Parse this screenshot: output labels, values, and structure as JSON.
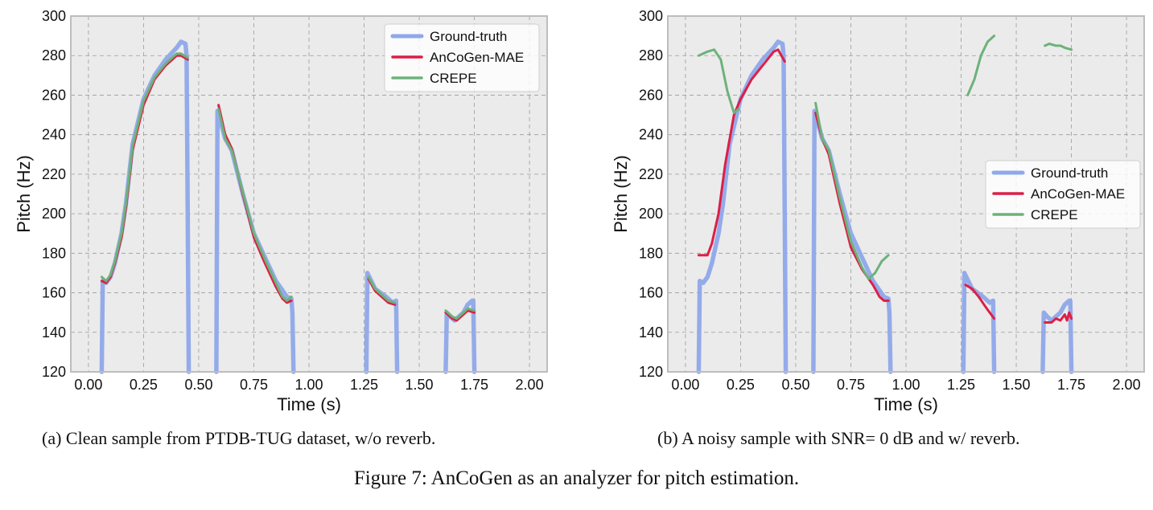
{
  "figure_caption": "Figure 7: AnCoGen as an analyzer for pitch estimation.",
  "panels": [
    {
      "caption": "(a) Clean sample from PTDB-TUG dataset, w/o reverb."
    },
    {
      "caption": "(b) A noisy sample with SNR= 0 dB and w/ reverb."
    }
  ],
  "colors": {
    "ground_truth": "#8fa8ea",
    "ancogen": "#dc1f46",
    "crepe": "#6db27a",
    "plot_bg": "#ebebeb",
    "grid": "#9a9a9a",
    "frame": "#bdbdbd"
  },
  "chart_data": [
    {
      "type": "line",
      "xlabel": "Time (s)",
      "ylabel": "Pitch (Hz)",
      "xlim": [
        -0.08,
        2.08
      ],
      "ylim": [
        120,
        300
      ],
      "xticks": [
        "0.00",
        "0.25",
        "0.50",
        "0.75",
        "1.00",
        "1.25",
        "1.50",
        "1.75",
        "2.00"
      ],
      "yticks": [
        "120",
        "140",
        "160",
        "180",
        "200",
        "220",
        "240",
        "260",
        "280",
        "300"
      ],
      "grid": true,
      "legend_position": "top-right",
      "series": [
        {
          "name": "Ground-truth",
          "color": "#8fa8ea",
          "width": 5.5,
          "segments": [
            [
              [
                0.06,
                120
              ],
              [
                0.065,
                166
              ],
              [
                0.08,
                165
              ],
              [
                0.1,
                168
              ],
              [
                0.12,
                175
              ],
              [
                0.15,
                190
              ],
              [
                0.17,
                205
              ],
              [
                0.2,
                235
              ],
              [
                0.25,
                258
              ],
              [
                0.3,
                270
              ],
              [
                0.35,
                278
              ],
              [
                0.4,
                284
              ],
              [
                0.42,
                287
              ],
              [
                0.44,
                286
              ],
              [
                0.445,
                280
              ],
              [
                0.45,
                200
              ],
              [
                0.455,
                120
              ]
            ],
            [
              [
                0.58,
                120
              ],
              [
                0.585,
                252
              ],
              [
                0.62,
                238
              ],
              [
                0.65,
                232
              ],
              [
                0.7,
                210
              ],
              [
                0.75,
                190
              ],
              [
                0.8,
                178
              ],
              [
                0.85,
                166
              ],
              [
                0.9,
                158
              ],
              [
                0.92,
                157
              ],
              [
                0.925,
                150
              ],
              [
                0.93,
                120
              ]
            ],
            [
              [
                1.26,
                120
              ],
              [
                1.265,
                170
              ],
              [
                1.3,
                162
              ],
              [
                1.35,
                158
              ],
              [
                1.38,
                155
              ],
              [
                1.395,
                156
              ],
              [
                1.4,
                120
              ]
            ],
            [
              [
                1.62,
                120
              ],
              [
                1.625,
                150
              ],
              [
                1.64,
                148
              ],
              [
                1.66,
                146
              ],
              [
                1.7,
                150
              ],
              [
                1.72,
                154
              ],
              [
                1.74,
                156
              ],
              [
                1.745,
                156
              ],
              [
                1.75,
                120
              ]
            ]
          ]
        },
        {
          "name": "AnCoGen-MAE",
          "color": "#dc1f46",
          "width": 3,
          "segments": [
            [
              [
                0.06,
                166
              ],
              [
                0.08,
                165
              ],
              [
                0.1,
                168
              ],
              [
                0.12,
                175
              ],
              [
                0.15,
                188
              ],
              [
                0.17,
                203
              ],
              [
                0.2,
                232
              ],
              [
                0.25,
                255
              ],
              [
                0.3,
                268
              ],
              [
                0.35,
                275
              ],
              [
                0.4,
                280
              ],
              [
                0.42,
                280
              ],
              [
                0.45,
                278
              ]
            ],
            [
              [
                0.59,
                255
              ],
              [
                0.62,
                240
              ],
              [
                0.65,
                233
              ],
              [
                0.7,
                210
              ],
              [
                0.75,
                188
              ],
              [
                0.8,
                175
              ],
              [
                0.85,
                163
              ],
              [
                0.88,
                157
              ],
              [
                0.9,
                155
              ],
              [
                0.92,
                156
              ]
            ],
            [
              [
                1.27,
                167
              ],
              [
                1.3,
                161
              ],
              [
                1.33,
                158
              ],
              [
                1.36,
                155
              ],
              [
                1.39,
                154
              ]
            ],
            [
              [
                1.62,
                150
              ],
              [
                1.65,
                147
              ],
              [
                1.67,
                146
              ],
              [
                1.7,
                149
              ],
              [
                1.72,
                151
              ],
              [
                1.75,
                150
              ]
            ]
          ]
        },
        {
          "name": "CREPE",
          "color": "#6db27a",
          "width": 3,
          "segments": [
            [
              [
                0.06,
                168
              ],
              [
                0.08,
                166
              ],
              [
                0.1,
                169
              ],
              [
                0.12,
                176
              ],
              [
                0.15,
                190
              ],
              [
                0.17,
                205
              ],
              [
                0.2,
                234
              ],
              [
                0.25,
                257
              ],
              [
                0.3,
                269
              ],
              [
                0.35,
                276
              ],
              [
                0.4,
                281
              ],
              [
                0.42,
                281
              ],
              [
                0.45,
                279
              ]
            ],
            [
              [
                0.59,
                253
              ],
              [
                0.62,
                238
              ],
              [
                0.65,
                232
              ],
              [
                0.7,
                211
              ],
              [
                0.75,
                190
              ],
              [
                0.8,
                177
              ],
              [
                0.85,
                165
              ],
              [
                0.88,
                158
              ],
              [
                0.9,
                156
              ],
              [
                0.92,
                158
              ]
            ],
            [
              [
                1.27,
                168
              ],
              [
                1.3,
                162
              ],
              [
                1.33,
                159
              ],
              [
                1.36,
                156
              ],
              [
                1.39,
                155
              ]
            ],
            [
              [
                1.62,
                151
              ],
              [
                1.65,
                148
              ],
              [
                1.67,
                147
              ],
              [
                1.7,
                150
              ],
              [
                1.72,
                152
              ],
              [
                1.75,
                151
              ]
            ]
          ]
        }
      ]
    },
    {
      "type": "line",
      "xlabel": "Time (s)",
      "ylabel": "Pitch (Hz)",
      "xlim": [
        -0.08,
        2.08
      ],
      "ylim": [
        120,
        300
      ],
      "xticks": [
        "0.00",
        "0.25",
        "0.50",
        "0.75",
        "1.00",
        "1.25",
        "1.50",
        "1.75",
        "2.00"
      ],
      "yticks": [
        "120",
        "140",
        "160",
        "180",
        "200",
        "220",
        "240",
        "260",
        "280",
        "300"
      ],
      "grid": true,
      "legend_position": "center-right",
      "series": [
        {
          "name": "Ground-truth",
          "color": "#8fa8ea",
          "width": 5.5,
          "segments": [
            [
              [
                0.06,
                120
              ],
              [
                0.065,
                166
              ],
              [
                0.08,
                165
              ],
              [
                0.1,
                168
              ],
              [
                0.12,
                175
              ],
              [
                0.15,
                190
              ],
              [
                0.17,
                205
              ],
              [
                0.2,
                235
              ],
              [
                0.25,
                258
              ],
              [
                0.3,
                270
              ],
              [
                0.35,
                278
              ],
              [
                0.4,
                284
              ],
              [
                0.42,
                287
              ],
              [
                0.44,
                286
              ],
              [
                0.445,
                280
              ],
              [
                0.45,
                200
              ],
              [
                0.455,
                120
              ]
            ],
            [
              [
                0.58,
                120
              ],
              [
                0.585,
                252
              ],
              [
                0.62,
                238
              ],
              [
                0.65,
                232
              ],
              [
                0.7,
                210
              ],
              [
                0.75,
                190
              ],
              [
                0.8,
                178
              ],
              [
                0.85,
                166
              ],
              [
                0.9,
                158
              ],
              [
                0.92,
                157
              ],
              [
                0.925,
                150
              ],
              [
                0.93,
                120
              ]
            ],
            [
              [
                1.26,
                120
              ],
              [
                1.265,
                170
              ],
              [
                1.3,
                162
              ],
              [
                1.35,
                158
              ],
              [
                1.38,
                155
              ],
              [
                1.395,
                156
              ],
              [
                1.4,
                120
              ]
            ],
            [
              [
                1.62,
                120
              ],
              [
                1.625,
                150
              ],
              [
                1.64,
                148
              ],
              [
                1.66,
                146
              ],
              [
                1.7,
                150
              ],
              [
                1.72,
                154
              ],
              [
                1.74,
                156
              ],
              [
                1.745,
                156
              ],
              [
                1.75,
                120
              ]
            ]
          ]
        },
        {
          "name": "AnCoGen-MAE",
          "color": "#dc1f46",
          "width": 3,
          "segments": [
            [
              [
                0.06,
                179
              ],
              [
                0.1,
                179
              ],
              [
                0.12,
                185
              ],
              [
                0.15,
                200
              ],
              [
                0.18,
                225
              ],
              [
                0.22,
                250
              ],
              [
                0.25,
                258
              ],
              [
                0.3,
                268
              ],
              [
                0.35,
                275
              ],
              [
                0.4,
                282
              ],
              [
                0.42,
                283
              ],
              [
                0.45,
                277
              ]
            ],
            [
              [
                0.59,
                251
              ],
              [
                0.62,
                238
              ],
              [
                0.65,
                230
              ],
              [
                0.7,
                205
              ],
              [
                0.75,
                183
              ],
              [
                0.8,
                172
              ],
              [
                0.85,
                164
              ],
              [
                0.88,
                158
              ],
              [
                0.9,
                156
              ],
              [
                0.92,
                156
              ]
            ],
            [
              [
                1.27,
                164
              ],
              [
                1.3,
                162
              ],
              [
                1.33,
                158
              ],
              [
                1.36,
                153
              ],
              [
                1.38,
                150
              ],
              [
                1.4,
                147
              ]
            ],
            [
              [
                1.63,
                145
              ],
              [
                1.66,
                145
              ],
              [
                1.68,
                147
              ],
              [
                1.7,
                146
              ],
              [
                1.72,
                149
              ],
              [
                1.73,
                146
              ],
              [
                1.74,
                150
              ],
              [
                1.75,
                147
              ]
            ]
          ]
        },
        {
          "name": "CREPE",
          "color": "#6db27a",
          "width": 3,
          "segments": [
            [
              [
                0.06,
                280
              ],
              [
                0.1,
                282
              ],
              [
                0.13,
                283
              ],
              [
                0.16,
                278
              ],
              [
                0.19,
                262
              ],
              [
                0.22,
                251
              ],
              [
                0.24,
                253
              ]
            ],
            [
              [
                0.59,
                256
              ],
              [
                0.62,
                238
              ],
              [
                0.65,
                232
              ],
              [
                0.7,
                208
              ],
              [
                0.75,
                186
              ],
              [
                0.8,
                173
              ],
              [
                0.83,
                167
              ],
              [
                0.86,
                170
              ],
              [
                0.89,
                176
              ],
              [
                0.92,
                179
              ]
            ],
            [
              [
                1.28,
                260
              ],
              [
                1.31,
                268
              ],
              [
                1.34,
                280
              ],
              [
                1.37,
                287
              ],
              [
                1.4,
                290
              ]
            ],
            [
              [
                1.63,
                285
              ],
              [
                1.65,
                286
              ],
              [
                1.68,
                285
              ],
              [
                1.7,
                285
              ],
              [
                1.72,
                284
              ],
              [
                1.75,
                283
              ]
            ]
          ]
        }
      ]
    }
  ]
}
